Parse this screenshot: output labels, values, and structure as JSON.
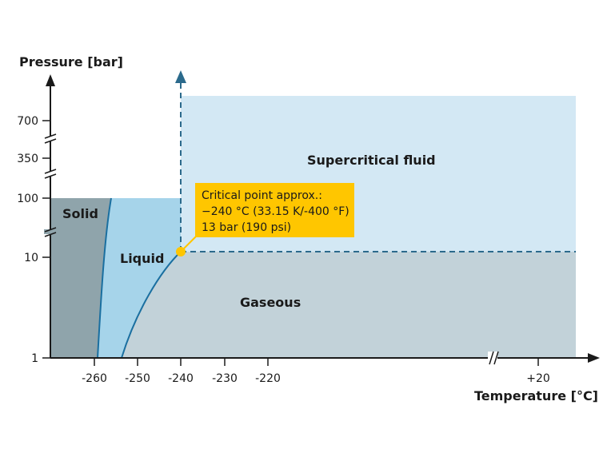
{
  "y_axis": {
    "title": "Pressure [bar]",
    "ticks": [
      "700",
      "350",
      "100",
      "10",
      "1"
    ]
  },
  "x_axis": {
    "title": "Temperature [°C]",
    "ticks": [
      "-260",
      "-250",
      "-240",
      "-230",
      "-220",
      "+20"
    ]
  },
  "regions": {
    "solid": "Solid",
    "liquid": "Liquid",
    "gaseous": "Gaseous",
    "supercritical": "Supercritical fluid"
  },
  "critical_point": {
    "line1": "Critical point approx.:",
    "line2": "−240 °C (33.15 K/-400 °F)",
    "line3": "13 bar (190 psi)"
  },
  "colors": {
    "solid": "#8fa4ab",
    "liquid": "#a6d4ea",
    "gaseous": "#c2d2d9",
    "supercritical": "#d3e8f4",
    "phase_line": "#1a6fa0",
    "dashed_line": "#2b6a8c",
    "critical_point": "#ffc600",
    "axis": "#1a1a1a"
  }
}
